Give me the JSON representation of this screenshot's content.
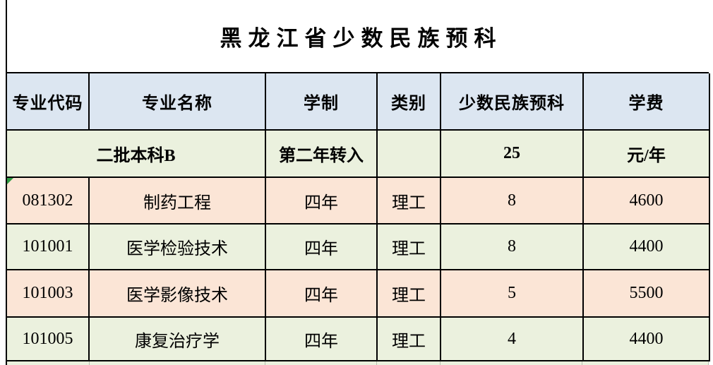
{
  "title": "黑龙江省少数民族预科",
  "table": {
    "header": {
      "code": "专业代码",
      "name": "专业名称",
      "duration": "学制",
      "category": "类别",
      "minority_prep": "少数民族预科",
      "tuition": "学费"
    },
    "batch_row": {
      "batch": "二批本科B",
      "transfer": "第二年转入",
      "category": "",
      "quota": "25",
      "tuition_unit": "元/年"
    },
    "rows": [
      {
        "code": "081302",
        "name": "制药工程",
        "duration": "四年",
        "category": "理工",
        "quota": "8",
        "tuition": "4600"
      },
      {
        "code": "101001",
        "name": "医学检验技术",
        "duration": "四年",
        "category": "理工",
        "quota": "8",
        "tuition": "4400"
      },
      {
        "code": "101003",
        "name": "医学影像技术",
        "duration": "四年",
        "category": "理工",
        "quota": "5",
        "tuition": "5500"
      },
      {
        "code": "101005",
        "name": "康复治疗学",
        "duration": "四年",
        "category": "理工",
        "quota": "4",
        "tuition": "4400"
      }
    ]
  },
  "colors": {
    "header_bg": "#dce6f1",
    "green_row_bg": "#ebf1de",
    "pink_row_bg": "#fbe5d6",
    "border": "#000000",
    "error_flag_green": "#2e9b43",
    "text": "#000000"
  }
}
